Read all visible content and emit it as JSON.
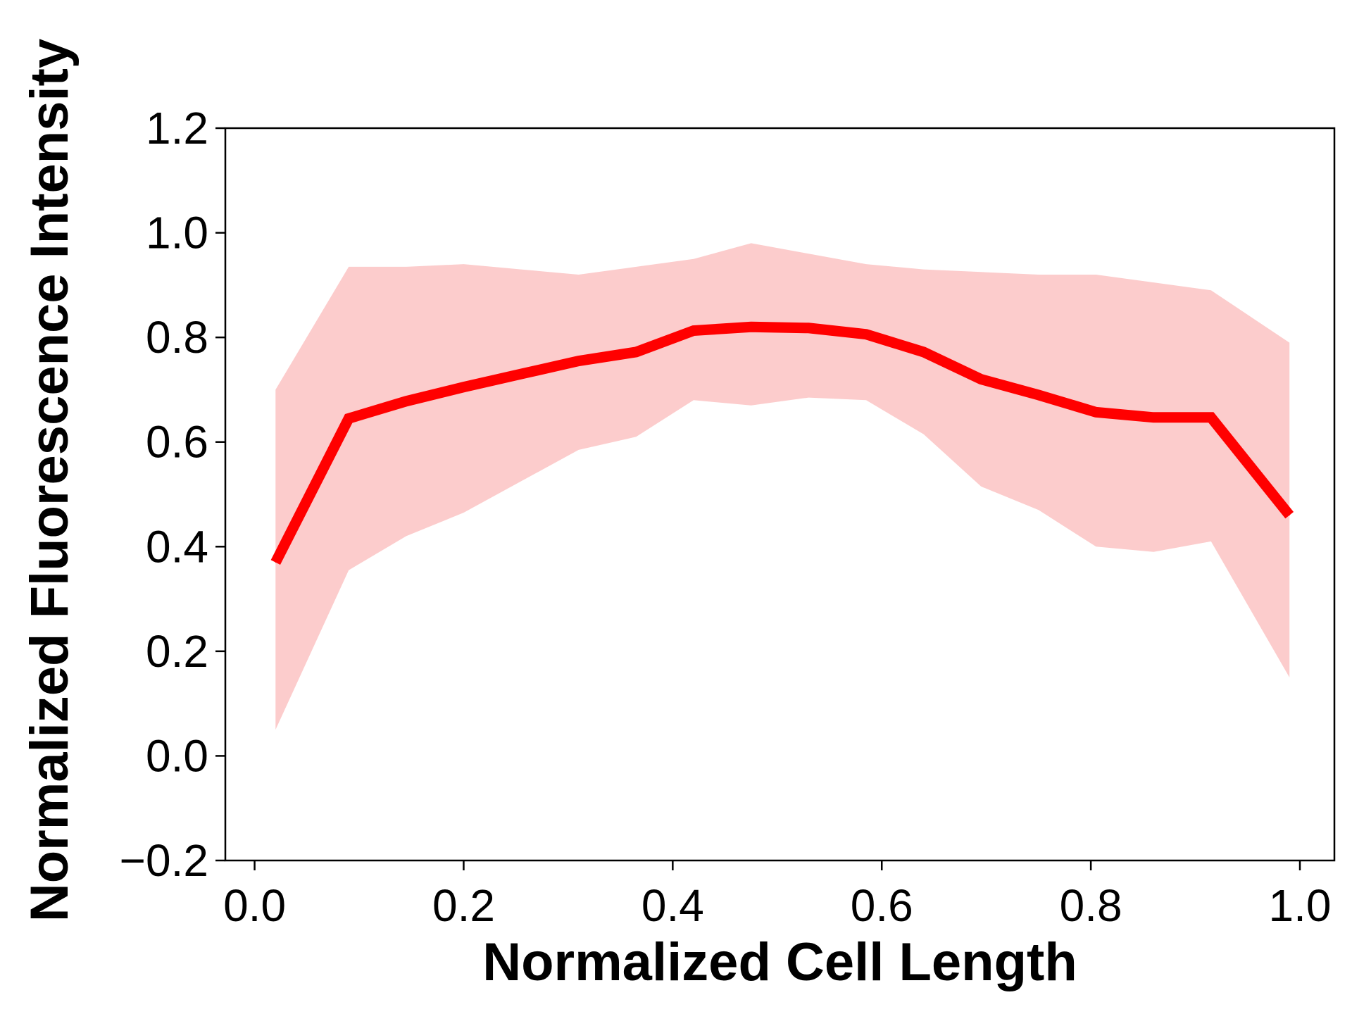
{
  "chart_data": {
    "type": "line",
    "title": "",
    "xlabel": "Normalized Cell Length",
    "ylabel": "Normalized Fluorescence Intensity",
    "xlim": [
      -0.028,
      1.033
    ],
    "ylim": [
      -0.2,
      1.2
    ],
    "x_ticks": [
      0.0,
      0.2,
      0.4,
      0.6,
      0.8,
      1.0
    ],
    "x_tick_labels": [
      "0.0",
      "0.2",
      "0.4",
      "0.6",
      "0.8",
      "1.0"
    ],
    "y_ticks": [
      -0.2,
      0.0,
      0.2,
      0.4,
      0.6,
      0.8,
      1.0,
      1.2
    ],
    "y_tick_labels": [
      "−0.2",
      "0.0",
      "0.2",
      "0.4",
      "0.6",
      "0.8",
      "1.0",
      "1.2"
    ],
    "grid": false,
    "legend": "none",
    "series": [
      {
        "color": "#ff0000",
        "band_color": "#fccccc",
        "x": [
          0.02,
          0.09,
          0.145,
          0.2,
          0.255,
          0.31,
          0.365,
          0.42,
          0.475,
          0.53,
          0.585,
          0.64,
          0.695,
          0.75,
          0.805,
          0.86,
          0.915,
          0.99
        ],
        "y": [
          0.37,
          0.645,
          0.678,
          0.705,
          0.73,
          0.755,
          0.772,
          0.813,
          0.82,
          0.818,
          0.806,
          0.772,
          0.72,
          0.69,
          0.657,
          0.647,
          0.647,
          0.46
        ],
        "upper": [
          0.7,
          0.935,
          0.935,
          0.94,
          0.93,
          0.92,
          0.935,
          0.95,
          0.98,
          0.96,
          0.94,
          0.93,
          0.925,
          0.92,
          0.92,
          0.905,
          0.89,
          0.79
        ],
        "lower": [
          0.05,
          0.355,
          0.42,
          0.465,
          0.525,
          0.585,
          0.61,
          0.68,
          0.67,
          0.685,
          0.68,
          0.615,
          0.515,
          0.47,
          0.4,
          0.39,
          0.41,
          0.15
        ]
      }
    ]
  }
}
